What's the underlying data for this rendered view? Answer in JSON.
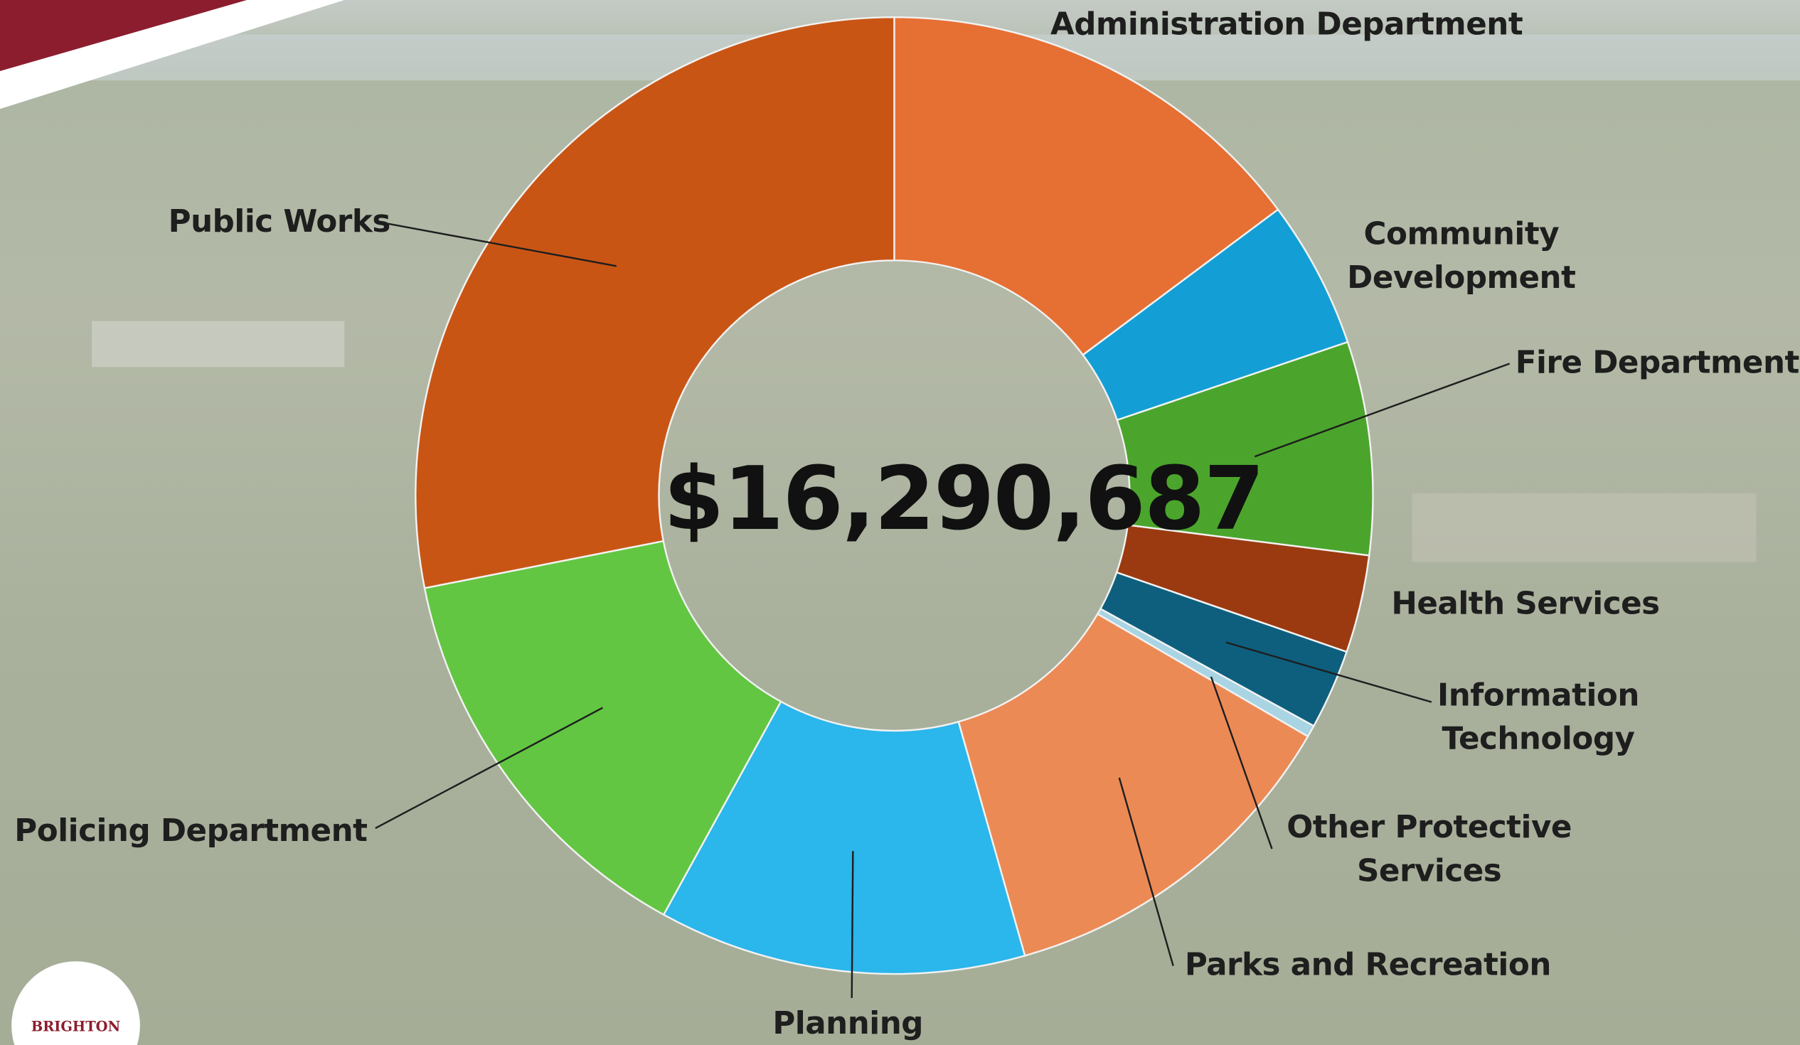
{
  "chart_data": {
    "type": "donut",
    "center_text": "$16,290,687",
    "categories": [
      "Administration Department",
      "Community Development",
      "Fire Department",
      "Health Services",
      "Information Technology",
      "Other Protective Services",
      "Parks and Recreation",
      "Planning",
      "Policing Department",
      "Public Works"
    ],
    "values": [
      14.8,
      5.0,
      7.2,
      3.3,
      2.7,
      0.4,
      12.2,
      12.4,
      13.9,
      28.1
    ],
    "colors": [
      "#e66f33",
      "#139fd6",
      "#4ba52c",
      "#9b3a10",
      "#0e5f7e",
      "#a9d4e3",
      "#ec8a55",
      "#2bb6ec",
      "#62c642",
      "#c95515"
    ]
  },
  "logo_text": "BRIGHTON"
}
